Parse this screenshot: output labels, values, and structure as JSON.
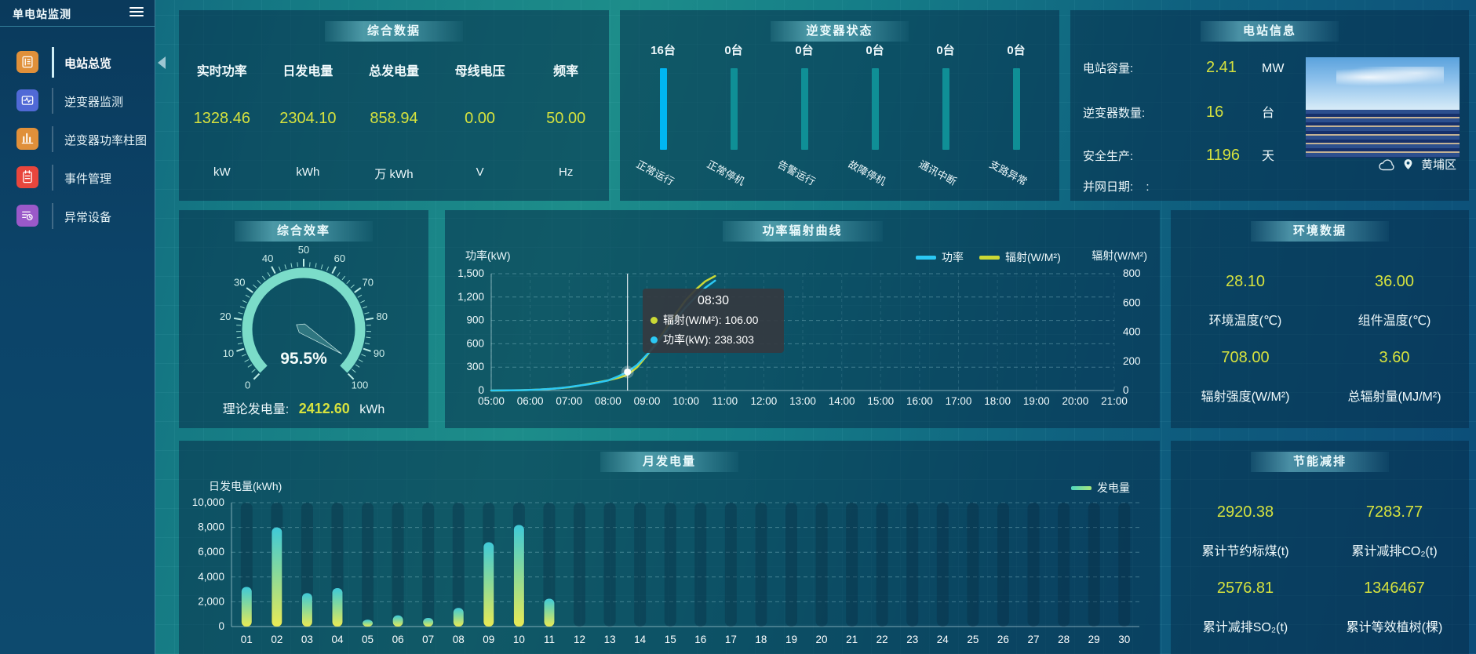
{
  "app": {
    "title": "单电站监测"
  },
  "sidebar": {
    "items": [
      {
        "label": "电站总览",
        "color": "#e0903a",
        "active": true
      },
      {
        "label": "逆变器监测",
        "color": "#5069d6",
        "active": false
      },
      {
        "label": "逆变器功率柱图",
        "color": "#e0903a",
        "active": false
      },
      {
        "label": "事件管理",
        "color": "#e8463d",
        "active": false
      },
      {
        "label": "异常设备",
        "color": "#9a59c9",
        "active": false
      }
    ]
  },
  "overview": {
    "title": "综合数据",
    "metrics": [
      {
        "label": "实时功率",
        "value": "1328.46",
        "unit": "kW"
      },
      {
        "label": "日发电量",
        "value": "2304.10",
        "unit": "kWh"
      },
      {
        "label": "总发电量",
        "value": "858.94",
        "unit": "万 kWh"
      },
      {
        "label": "母线电压",
        "value": "0.00",
        "unit": "V"
      },
      {
        "label": "频率",
        "value": "50.00",
        "unit": "Hz"
      }
    ]
  },
  "inverter_status": {
    "title": "逆变器状态",
    "bar_colors": {
      "active": "#00b6f2",
      "idle": "#0f8f96"
    },
    "items": [
      {
        "count": "16台",
        "label": "正常运行",
        "value": 16
      },
      {
        "count": "0台",
        "label": "正常停机",
        "value": 0
      },
      {
        "count": "0台",
        "label": "告警运行",
        "value": 0
      },
      {
        "count": "0台",
        "label": "故障停机",
        "value": 0
      },
      {
        "count": "0台",
        "label": "通讯中断",
        "value": 0
      },
      {
        "count": "0台",
        "label": "支路异常",
        "value": 0
      }
    ]
  },
  "station_info": {
    "title": "电站信息",
    "rows": [
      {
        "label": "电站容量:",
        "value": "2.41",
        "unit": "MW"
      },
      {
        "label": "逆变器数量:",
        "value": "16",
        "unit": "台"
      },
      {
        "label": "安全生产:",
        "value": "1196",
        "unit": "天"
      }
    ],
    "grid_row": {
      "label": "并网日期:",
      "value": ":"
    },
    "location": "黄埔区"
  },
  "efficiency": {
    "title": "综合效率",
    "theory_label": "理论发电量:",
    "theory_value": "2412.60",
    "theory_unit": "kWh"
  },
  "env": {
    "title": "环境数据",
    "stats": [
      {
        "value": "28.10",
        "label": "环境温度(℃)"
      },
      {
        "value": "36.00",
        "label": "组件温度(℃)"
      },
      {
        "value": "708.00",
        "label": "辐射强度(W/M²)"
      },
      {
        "value": "3.60",
        "label": "总辐射量(MJ/M²)"
      }
    ]
  },
  "saving": {
    "title": "节能减排",
    "stats": [
      {
        "value": "2920.38",
        "label": "累计节约标煤(t)"
      },
      {
        "value": "7283.77",
        "label": "累计减排CO₂(t)"
      },
      {
        "value": "2576.81",
        "label": "累计减排SO₂(t)"
      },
      {
        "value": "1346467",
        "label": "累计等效植树(棵)"
      }
    ]
  },
  "chart_data": [
    {
      "type": "bar",
      "id": "inverter_status",
      "categories": [
        "正常运行",
        "正常停机",
        "告警运行",
        "故障停机",
        "通讯中断",
        "支路异常"
      ],
      "values": [
        16,
        0,
        0,
        0,
        0,
        0
      ],
      "unit": "台"
    },
    {
      "type": "gauge",
      "id": "efficiency",
      "title": "综合效率",
      "value": 95.5,
      "display": "95.5%",
      "min": 0,
      "max": 100,
      "major_ticks": [
        0,
        10,
        20,
        30,
        40,
        50,
        60,
        70,
        80,
        90,
        100
      ],
      "band_color": "#7bdcc9"
    },
    {
      "type": "line",
      "id": "power_radiation",
      "title": "功率辐射曲线",
      "x_hours": [
        5,
        5.25,
        5.5,
        5.75,
        6,
        6.25,
        6.5,
        6.75,
        7,
        7.25,
        7.5,
        7.75,
        8,
        8.25,
        8.5,
        8.75,
        9,
        9.25,
        9.5,
        9.75,
        10,
        10.25,
        10.5,
        10.75
      ],
      "x_ticks": [
        "05:00",
        "06:00",
        "07:00",
        "08:00",
        "09:00",
        "10:00",
        "11:00",
        "12:00",
        "13:00",
        "14:00",
        "15:00",
        "16:00",
        "17:00",
        "18:00",
        "19:00",
        "20:00",
        "21:00"
      ],
      "x_range": [
        5,
        21
      ],
      "series": [
        {
          "name": "功率",
          "axis": "left",
          "color": "#2bc8f4",
          "values": [
            0,
            1,
            2,
            4,
            8,
            13,
            20,
            30,
            45,
            62,
            80,
            103,
            130,
            180,
            238.303,
            330,
            460,
            600,
            760,
            920,
            1070,
            1200,
            1320,
            1410
          ]
        },
        {
          "name": "辐射(W/M²)",
          "axis": "right",
          "color": "#cbd935",
          "values": [
            0,
            0,
            1,
            2,
            4,
            7,
            11,
            16,
            22,
            33,
            45,
            57,
            70,
            86,
            106,
            160,
            240,
            330,
            430,
            530,
            620,
            690,
            748,
            784
          ]
        }
      ],
      "left_axis": {
        "name": "功率(kW)",
        "max": 1500,
        "ticks": [
          "0",
          "300",
          "600",
          "900",
          "1,200",
          "1,500"
        ]
      },
      "right_axis": {
        "name": "辐射(W/M²)",
        "max": 800,
        "ticks": [
          "0",
          "200",
          "400",
          "600",
          "800"
        ]
      },
      "crosshair_hour": 8.5,
      "tooltip": {
        "time": "08:30",
        "rows": [
          {
            "text": "辐射(W/M²): 106.00",
            "color": "#cbd935"
          },
          {
            "text": "功率(kW): 238.303",
            "color": "#2bc8f4"
          }
        ]
      }
    },
    {
      "type": "bar",
      "id": "monthly_energy",
      "title": "月发电量",
      "ylabel": "日发电量(kWh)",
      "legend": "发电量",
      "ymax": 10000,
      "y_ticks": [
        "0",
        "2,000",
        "4,000",
        "6,000",
        "8,000",
        "10,000"
      ],
      "categories": [
        "01",
        "02",
        "03",
        "04",
        "05",
        "06",
        "07",
        "08",
        "09",
        "10",
        "11",
        "12",
        "13",
        "14",
        "15",
        "16",
        "17",
        "18",
        "19",
        "20",
        "21",
        "22",
        "23",
        "24",
        "25",
        "26",
        "27",
        "28",
        "29",
        "30"
      ],
      "values": [
        3200,
        8000,
        2700,
        3100,
        550,
        900,
        700,
        1500,
        6800,
        8200,
        2250,
        0,
        0,
        0,
        0,
        0,
        0,
        0,
        0,
        0,
        0,
        0,
        0,
        0,
        0,
        0,
        0,
        0,
        0,
        0
      ]
    }
  ]
}
